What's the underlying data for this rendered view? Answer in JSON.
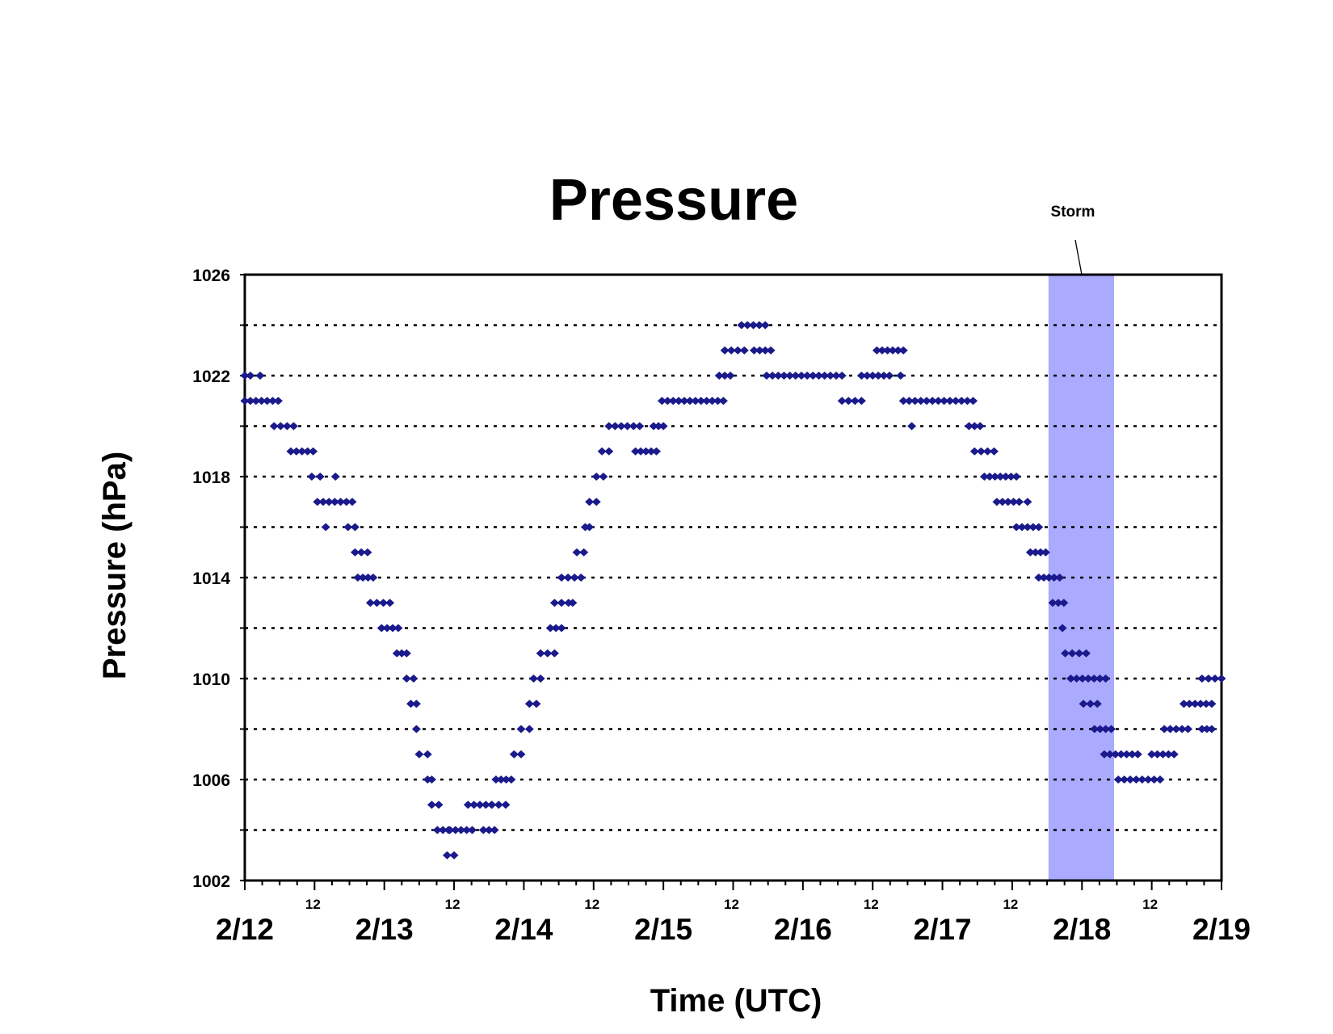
{
  "chart_data": {
    "type": "scatter",
    "title": "Pressure",
    "xlabel": "Time (UTC)",
    "ylabel": "Pressure (hPa)",
    "ylim": [
      1002,
      1026
    ],
    "yticks": [
      "1026",
      "1022",
      "1018",
      "1014",
      "1010",
      "1006",
      "1002"
    ],
    "x_unit": "days since 2/12 00 UTC",
    "xlim": [
      0,
      7
    ],
    "date_ticks": [
      "2/12",
      "2/13",
      "2/14",
      "2/15",
      "2/16",
      "2/17",
      "2/18",
      "2/19"
    ],
    "hour_tick_label": "12",
    "grid": "horizontal dotted lines every 2 hPa",
    "marker_color": "#1a1a8c",
    "annotation": {
      "label": "Storm",
      "x_start": 5.76,
      "x_end": 6.23,
      "color": "#aaaaff"
    },
    "series": [
      {
        "segments": [
          [
            0.0,
            0.04,
            1022
          ],
          [
            0.11,
            0.11,
            1022
          ],
          [
            0.0,
            0.24,
            1021
          ],
          [
            0.21,
            0.35,
            1020
          ],
          [
            0.33,
            0.49,
            1019
          ],
          [
            0.48,
            0.54,
            1018
          ],
          [
            0.65,
            0.65,
            1018
          ],
          [
            0.52,
            0.77,
            1017
          ],
          [
            0.58,
            0.58,
            1016
          ],
          [
            0.74,
            0.79,
            1016
          ],
          [
            0.79,
            0.88,
            1015
          ],
          [
            0.81,
            0.92,
            1014
          ],
          [
            0.9,
            1.04,
            1013
          ],
          [
            0.98,
            1.1,
            1012
          ],
          [
            1.09,
            1.16,
            1011
          ],
          [
            1.16,
            1.21,
            1010
          ],
          [
            1.19,
            1.23,
            1009
          ],
          [
            1.23,
            1.25,
            1008
          ],
          [
            1.25,
            1.31,
            1007
          ],
          [
            1.31,
            1.34,
            1006
          ],
          [
            1.34,
            1.39,
            1005
          ],
          [
            1.6,
            1.77,
            1005
          ],
          [
            1.77,
            1.87,
            1005
          ],
          [
            1.38,
            1.46,
            1004
          ],
          [
            1.47,
            1.63,
            1004
          ],
          [
            1.71,
            1.79,
            1004
          ],
          [
            1.45,
            1.5,
            1003
          ],
          [
            1.8,
            1.91,
            1006
          ],
          [
            1.93,
            1.98,
            1007
          ],
          [
            1.98,
            2.04,
            1008
          ],
          [
            2.04,
            2.09,
            1009
          ],
          [
            2.07,
            2.12,
            1010
          ],
          [
            2.12,
            2.22,
            1011
          ],
          [
            2.19,
            2.27,
            1012
          ],
          [
            2.22,
            2.32,
            1013
          ],
          [
            2.35,
            2.37,
            1013
          ],
          [
            2.27,
            2.41,
            1014
          ],
          [
            2.38,
            2.43,
            1015
          ],
          [
            2.44,
            2.47,
            1016
          ],
          [
            2.47,
            2.52,
            1017
          ],
          [
            2.52,
            2.57,
            1018
          ],
          [
            2.56,
            2.61,
            1019
          ],
          [
            2.8,
            2.95,
            1019
          ],
          [
            2.61,
            2.83,
            1020
          ],
          [
            2.93,
            3.0,
            1020
          ],
          [
            2.99,
            3.43,
            1021
          ],
          [
            3.4,
            3.48,
            1022
          ],
          [
            3.44,
            3.58,
            1023
          ],
          [
            3.65,
            3.77,
            1023
          ],
          [
            3.56,
            3.73,
            1024
          ],
          [
            3.74,
            4.28,
            1022
          ],
          [
            4.28,
            4.42,
            1021
          ],
          [
            4.42,
            4.62,
            1022
          ],
          [
            4.53,
            4.72,
            1023
          ],
          [
            4.7,
            4.72,
            1022
          ],
          [
            4.72,
            5.22,
            1021
          ],
          [
            4.78,
            4.78,
            1020
          ],
          [
            5.19,
            5.27,
            1020
          ],
          [
            5.23,
            5.37,
            1019
          ],
          [
            5.3,
            5.53,
            1018
          ],
          [
            5.39,
            5.55,
            1017
          ],
          [
            5.61,
            5.61,
            1017
          ],
          [
            5.53,
            5.69,
            1016
          ],
          [
            5.63,
            5.74,
            1015
          ],
          [
            5.69,
            5.8,
            1014
          ],
          [
            5.84,
            5.84,
            1014
          ],
          [
            5.79,
            5.87,
            1013
          ],
          [
            5.86,
            5.86,
            1012
          ],
          [
            5.88,
            5.93,
            1011
          ],
          [
            5.98,
            6.03,
            1011
          ],
          [
            5.92,
            6.17,
            1010
          ],
          [
            6.01,
            6.11,
            1009
          ],
          [
            6.09,
            6.21,
            1008
          ],
          [
            6.16,
            6.4,
            1007
          ],
          [
            6.26,
            6.56,
            1006
          ],
          [
            6.5,
            6.66,
            1007
          ],
          [
            6.59,
            6.76,
            1008
          ],
          [
            6.73,
            6.93,
            1009
          ],
          [
            6.86,
            6.93,
            1008
          ],
          [
            6.86,
            7.0,
            1010
          ]
        ]
      }
    ]
  }
}
